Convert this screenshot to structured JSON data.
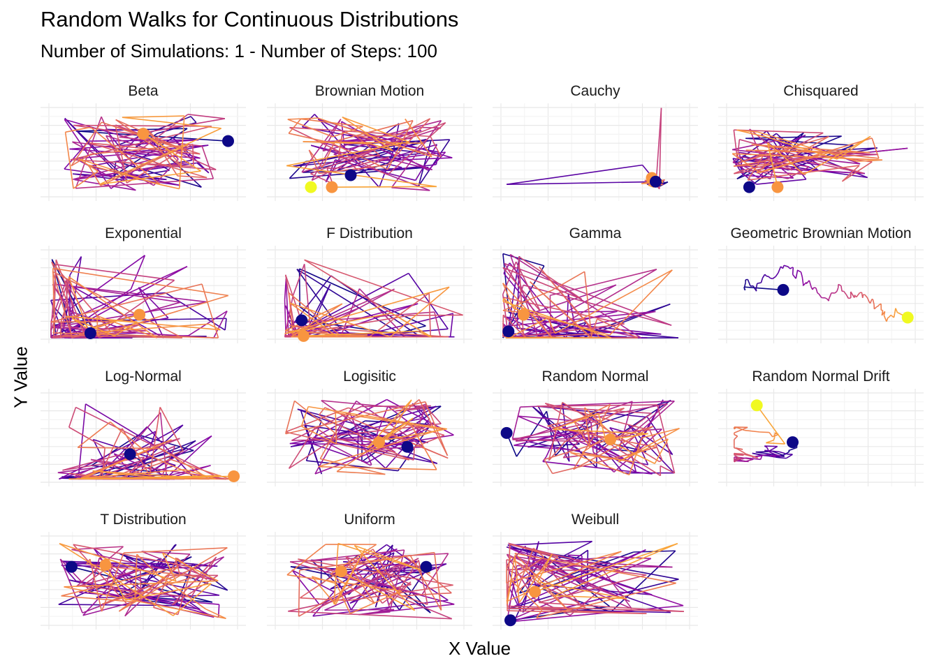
{
  "title": "Random Walks for Continuous Distributions",
  "subtitle": "Number of Simulations: 1 - Number of Steps: 100",
  "x_axis_label": "X Value",
  "y_axis_label": "Y Value",
  "chart_data": {
    "type": "line",
    "facet": "wrap",
    "facet_cols": 4,
    "grid": true,
    "tick_labels": false,
    "color_scale": "plasma",
    "steps": 100,
    "simulations": 1,
    "start_color": "#0d0887",
    "end_color": "#f89540",
    "panels": [
      {
        "name": "Beta",
        "seed": 11,
        "style": "bounded",
        "start": [
          0.95,
          0.38
        ],
        "end": [
          0.5,
          0.3
        ]
      },
      {
        "name": "Brownian Motion",
        "seed": 23,
        "style": "bounded",
        "start": [
          0.4,
          0.75
        ],
        "end": [
          0.3,
          0.88
        ],
        "extra": [
          0.3,
          0.88
        ]
      },
      {
        "name": "Cauchy",
        "seed": 37,
        "style": "cauchy",
        "start": [
          0.82,
          0.82
        ],
        "end": [
          0.8,
          0.78
        ]
      },
      {
        "name": "Chisquared",
        "seed": 41,
        "style": "skewx",
        "start": [
          0.12,
          0.88
        ],
        "end": [
          0.27,
          0.88
        ]
      },
      {
        "name": "Exponential",
        "seed": 53,
        "style": "corner",
        "start": [
          0.22,
          0.92
        ],
        "end": [
          0.48,
          0.72
        ]
      },
      {
        "name": "F Distribution",
        "seed": 61,
        "style": "fdist",
        "start": [
          0.14,
          0.78
        ],
        "end": [
          0.15,
          0.95
        ]
      },
      {
        "name": "Gamma",
        "seed": 71,
        "style": "corner",
        "start": [
          0.04,
          0.9
        ],
        "end": [
          0.12,
          0.72
        ]
      },
      {
        "name": "Geometric Brownian Motion",
        "seed": 83,
        "style": "gbm",
        "start": [
          0.3,
          0.45
        ],
        "end": [
          0.96,
          0.75
        ]
      },
      {
        "name": "Log-Normal",
        "seed": 97,
        "style": "lognormal",
        "start": [
          0.43,
          0.68
        ],
        "end": [
          0.98,
          0.92
        ]
      },
      {
        "name": "Logisitic",
        "seed": 101,
        "style": "bounded",
        "start": [
          0.7,
          0.6
        ],
        "end": [
          0.55,
          0.55
        ]
      },
      {
        "name": "Random Normal",
        "seed": 113,
        "style": "bounded",
        "start": [
          0.03,
          0.45
        ],
        "end": [
          0.58,
          0.52
        ]
      },
      {
        "name": "Random Normal Drift",
        "seed": 127,
        "style": "drift",
        "start": [
          0.35,
          0.55
        ],
        "end": [
          0.16,
          0.15
        ]
      },
      {
        "name": "T Distribution",
        "seed": 131,
        "style": "bounded",
        "start": [
          0.12,
          0.35
        ],
        "end": [
          0.3,
          0.33
        ]
      },
      {
        "name": "Uniform",
        "seed": 139,
        "style": "bounded",
        "start": [
          0.8,
          0.35
        ],
        "end": [
          0.35,
          0.4
        ]
      },
      {
        "name": "Weibull",
        "seed": 149,
        "style": "weibull",
        "start": [
          0.05,
          0.93
        ],
        "end": [
          0.18,
          0.62
        ]
      }
    ]
  }
}
